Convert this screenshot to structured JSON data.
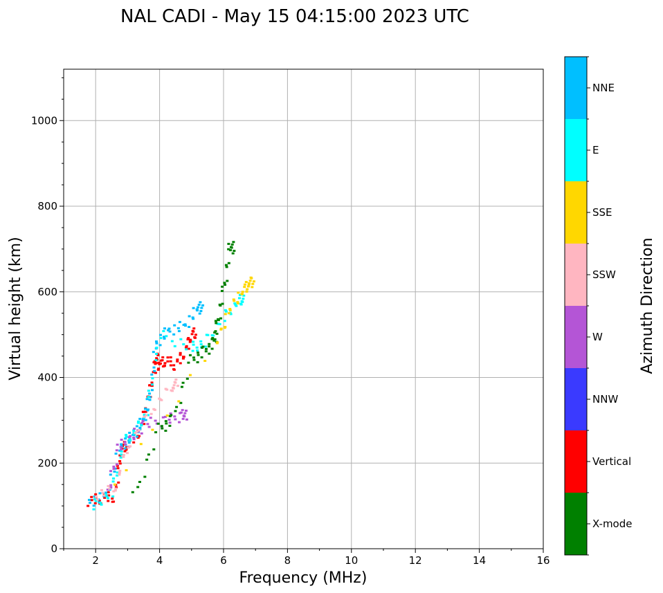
{
  "chart_data": {
    "type": "scatter",
    "title": "NAL CADI - May 15 04:15:00 2023 UTC",
    "xlabel": "Frequency (MHz)",
    "ylabel": "Virtual height (km)",
    "colorbar_label": "Azimuth Direction",
    "xlim": [
      1,
      16
    ],
    "ylim": [
      0,
      1120
    ],
    "xticks": [
      2,
      4,
      6,
      8,
      10,
      12,
      14,
      16
    ],
    "yticks": [
      0,
      200,
      400,
      600,
      800,
      1000
    ],
    "grid": true,
    "categories": [
      {
        "name": "X-mode",
        "color": "#008000"
      },
      {
        "name": "Vertical",
        "color": "#ff0000"
      },
      {
        "name": "NNW",
        "color": "#3a3aff"
      },
      {
        "name": "W",
        "color": "#b455d6"
      },
      {
        "name": "SSW",
        "color": "#ffb6c1"
      },
      {
        "name": "SSE",
        "color": "#ffd700"
      },
      {
        "name": "E",
        "color": "#00ffff"
      },
      {
        "name": "NNE",
        "color": "#00bfff"
      }
    ],
    "traces": [
      {
        "category": "Vertical",
        "points": [
          [
            1.8,
            112
          ],
          [
            2.2,
            118
          ],
          [
            2.6,
            122
          ],
          [
            2.8,
            230
          ],
          [
            3.0,
            245
          ],
          [
            3.4,
            275
          ],
          [
            3.6,
            340
          ],
          [
            3.8,
            400
          ],
          [
            3.9,
            450
          ],
          [
            4.0,
            430
          ],
          [
            4.2,
            440
          ],
          [
            4.5,
            430
          ],
          [
            4.8,
            460
          ],
          [
            5.0,
            500
          ]
        ]
      },
      {
        "category": "NNE",
        "points": [
          [
            1.8,
            110
          ],
          [
            2.3,
            120
          ],
          [
            2.8,
            240
          ],
          [
            3.2,
            265
          ],
          [
            3.5,
            300
          ],
          [
            3.7,
            350
          ],
          [
            3.9,
            480
          ],
          [
            4.3,
            510
          ],
          [
            4.8,
            520
          ],
          [
            5.2,
            560
          ]
        ]
      },
      {
        "category": "E",
        "points": [
          [
            1.9,
            100
          ],
          [
            2.5,
            130
          ],
          [
            2.9,
            250
          ],
          [
            3.3,
            280
          ],
          [
            3.6,
            320
          ],
          [
            4.0,
            500
          ],
          [
            5.0,
            470
          ],
          [
            5.4,
            480
          ],
          [
            6.0,
            540
          ],
          [
            6.5,
            580
          ]
        ]
      },
      {
        "category": "W",
        "points": [
          [
            2.4,
            130
          ],
          [
            2.7,
            235
          ],
          [
            3.1,
            255
          ],
          [
            3.5,
            290
          ],
          [
            4.2,
            300
          ],
          [
            4.7,
            310
          ]
        ]
      },
      {
        "category": "SSW",
        "points": [
          [
            2.0,
            125
          ],
          [
            2.6,
            140
          ],
          [
            3.0,
            240
          ],
          [
            3.8,
            330
          ],
          [
            4.4,
            380
          ]
        ]
      },
      {
        "category": "X-mode",
        "points": [
          [
            3.2,
            120
          ],
          [
            4.0,
            280
          ],
          [
            4.4,
            300
          ],
          [
            5.0,
            440
          ],
          [
            5.4,
            460
          ],
          [
            5.7,
            480
          ],
          [
            5.8,
            520
          ],
          [
            6.0,
            600
          ],
          [
            6.2,
            700
          ]
        ]
      },
      {
        "category": "SSE",
        "points": [
          [
            2.6,
            150
          ],
          [
            5.8,
            480
          ],
          [
            6.2,
            560
          ],
          [
            6.6,
            600
          ],
          [
            6.8,
            620
          ]
        ]
      }
    ]
  }
}
